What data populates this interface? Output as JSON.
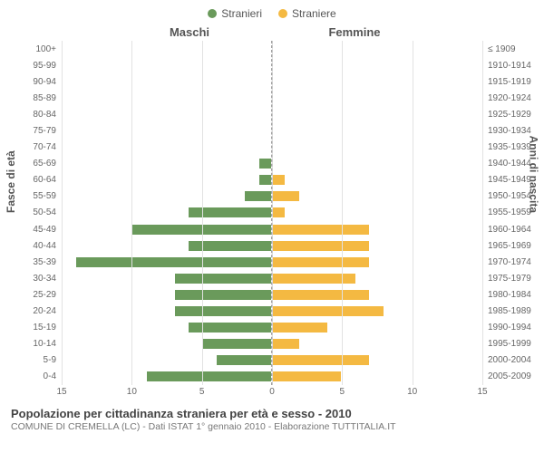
{
  "legend": {
    "male": {
      "label": "Stranieri",
      "color": "#6a9a5b"
    },
    "female": {
      "label": "Straniere",
      "color": "#f4b942"
    }
  },
  "header": {
    "male": "Maschi",
    "female": "Femmine"
  },
  "axes": {
    "left_title": "Fasce di età",
    "right_title": "Anni di nascita",
    "x_max": 15,
    "x_ticks_left": [
      15,
      10,
      5,
      0
    ],
    "x_ticks_right": [
      0,
      5,
      10,
      15
    ],
    "grid_color": "#e2e2e2",
    "center_color": "#808080"
  },
  "rows": [
    {
      "age": "100+",
      "birth": "≤ 1909",
      "m": 0,
      "f": 0
    },
    {
      "age": "95-99",
      "birth": "1910-1914",
      "m": 0,
      "f": 0
    },
    {
      "age": "90-94",
      "birth": "1915-1919",
      "m": 0,
      "f": 0
    },
    {
      "age": "85-89",
      "birth": "1920-1924",
      "m": 0,
      "f": 0
    },
    {
      "age": "80-84",
      "birth": "1925-1929",
      "m": 0,
      "f": 0
    },
    {
      "age": "75-79",
      "birth": "1930-1934",
      "m": 0,
      "f": 0
    },
    {
      "age": "70-74",
      "birth": "1935-1939",
      "m": 0,
      "f": 0
    },
    {
      "age": "65-69",
      "birth": "1940-1944",
      "m": 1,
      "f": 0
    },
    {
      "age": "60-64",
      "birth": "1945-1949",
      "m": 1,
      "f": 1
    },
    {
      "age": "55-59",
      "birth": "1950-1954",
      "m": 2,
      "f": 2
    },
    {
      "age": "50-54",
      "birth": "1955-1959",
      "m": 6,
      "f": 1
    },
    {
      "age": "45-49",
      "birth": "1960-1964",
      "m": 10,
      "f": 7
    },
    {
      "age": "40-44",
      "birth": "1965-1969",
      "m": 6,
      "f": 7
    },
    {
      "age": "35-39",
      "birth": "1970-1974",
      "m": 14,
      "f": 7
    },
    {
      "age": "30-34",
      "birth": "1975-1979",
      "m": 7,
      "f": 6
    },
    {
      "age": "25-29",
      "birth": "1980-1984",
      "m": 7,
      "f": 7
    },
    {
      "age": "20-24",
      "birth": "1985-1989",
      "m": 7,
      "f": 8
    },
    {
      "age": "15-19",
      "birth": "1990-1994",
      "m": 6,
      "f": 4
    },
    {
      "age": "10-14",
      "birth": "1995-1999",
      "m": 5,
      "f": 2
    },
    {
      "age": "5-9",
      "birth": "2000-2004",
      "m": 4,
      "f": 7
    },
    {
      "age": "0-4",
      "birth": "2005-2009",
      "m": 9,
      "f": 5
    }
  ],
  "caption": {
    "title": "Popolazione per cittadinanza straniera per età e sesso - 2010",
    "subtitle": "COMUNE DI CREMELLA (LC) - Dati ISTAT 1° gennaio 2010 - Elaborazione TUTTITALIA.IT"
  },
  "style": {
    "background": "#ffffff",
    "bar_border": "#ffffff",
    "font": "Arial"
  }
}
